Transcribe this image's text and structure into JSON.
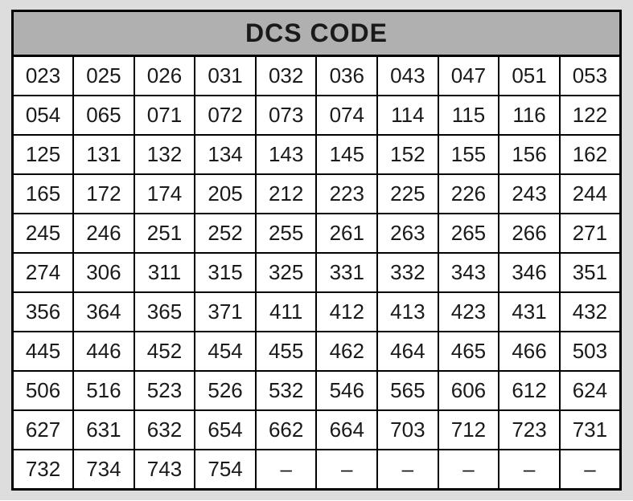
{
  "title": "DCS CODE",
  "columns": 10,
  "header_bg": "#b0b0b0",
  "page_bg": "#dddddd",
  "cell_bg": "#ffffff",
  "border_color": "#000000",
  "title_fontsize": 32,
  "cell_fontsize": 26,
  "dash": "–",
  "rows": [
    [
      "023",
      "025",
      "026",
      "031",
      "032",
      "036",
      "043",
      "047",
      "051",
      "053"
    ],
    [
      "054",
      "065",
      "071",
      "072",
      "073",
      "074",
      "114",
      "115",
      "116",
      "122"
    ],
    [
      "125",
      "131",
      "132",
      "134",
      "143",
      "145",
      "152",
      "155",
      "156",
      "162"
    ],
    [
      "165",
      "172",
      "174",
      "205",
      "212",
      "223",
      "225",
      "226",
      "243",
      "244"
    ],
    [
      "245",
      "246",
      "251",
      "252",
      "255",
      "261",
      "263",
      "265",
      "266",
      "271"
    ],
    [
      "274",
      "306",
      "311",
      "315",
      "325",
      "331",
      "332",
      "343",
      "346",
      "351"
    ],
    [
      "356",
      "364",
      "365",
      "371",
      "411",
      "412",
      "413",
      "423",
      "431",
      "432"
    ],
    [
      "445",
      "446",
      "452",
      "454",
      "455",
      "462",
      "464",
      "465",
      "466",
      "503"
    ],
    [
      "506",
      "516",
      "523",
      "526",
      "532",
      "546",
      "565",
      "606",
      "612",
      "624"
    ],
    [
      "627",
      "631",
      "632",
      "654",
      "662",
      "664",
      "703",
      "712",
      "723",
      "731"
    ],
    [
      "732",
      "734",
      "743",
      "754",
      "–",
      "–",
      "–",
      "–",
      "–",
      "–"
    ]
  ]
}
